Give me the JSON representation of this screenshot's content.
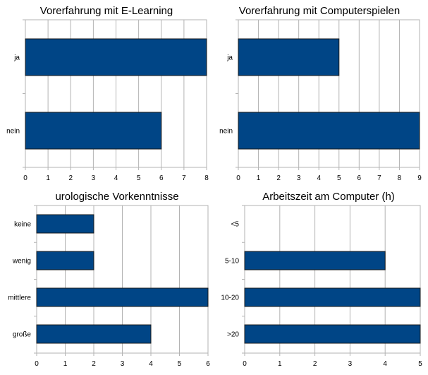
{
  "colors": {
    "bar_fill": "#004586",
    "bar_stroke": "#1a1a1a",
    "grid": "#b3b3b3",
    "axis": "#b3b3b3"
  },
  "chart_data": [
    {
      "type": "bar",
      "orientation": "horizontal",
      "title": "Vorerfahrung mit E-Learning",
      "categories": [
        "ja",
        "nein"
      ],
      "values": [
        8,
        6
      ],
      "xlim": [
        0,
        8
      ],
      "xticks": [
        "0",
        "1",
        "2",
        "3",
        "4",
        "5",
        "6",
        "7",
        "8"
      ],
      "grid": true
    },
    {
      "type": "bar",
      "orientation": "horizontal",
      "title": "Vorerfahrung mit Computerspielen",
      "categories": [
        "ja",
        "nein"
      ],
      "values": [
        5,
        9
      ],
      "xlim": [
        0,
        9
      ],
      "xticks": [
        "0",
        "1",
        "2",
        "3",
        "4",
        "5",
        "6",
        "7",
        "8",
        "9"
      ],
      "grid": true
    },
    {
      "type": "bar",
      "orientation": "horizontal",
      "title": "urologische Vorkenntnisse",
      "categories": [
        "keine",
        "wenig",
        "mittlere",
        "große"
      ],
      "values": [
        2,
        2,
        6,
        4
      ],
      "xlim": [
        0,
        6
      ],
      "xticks": [
        "0",
        "1",
        "2",
        "3",
        "4",
        "5",
        "6"
      ],
      "grid": true
    },
    {
      "type": "bar",
      "orientation": "horizontal",
      "title": "Arbeitszeit am Computer (h)",
      "categories": [
        "<5",
        "5-10",
        "10-20",
        ">20"
      ],
      "values": [
        0,
        4,
        5,
        5
      ],
      "xlim": [
        0,
        5
      ],
      "xticks": [
        "0",
        "1",
        "2",
        "3",
        "4",
        "5"
      ],
      "grid": true
    }
  ]
}
